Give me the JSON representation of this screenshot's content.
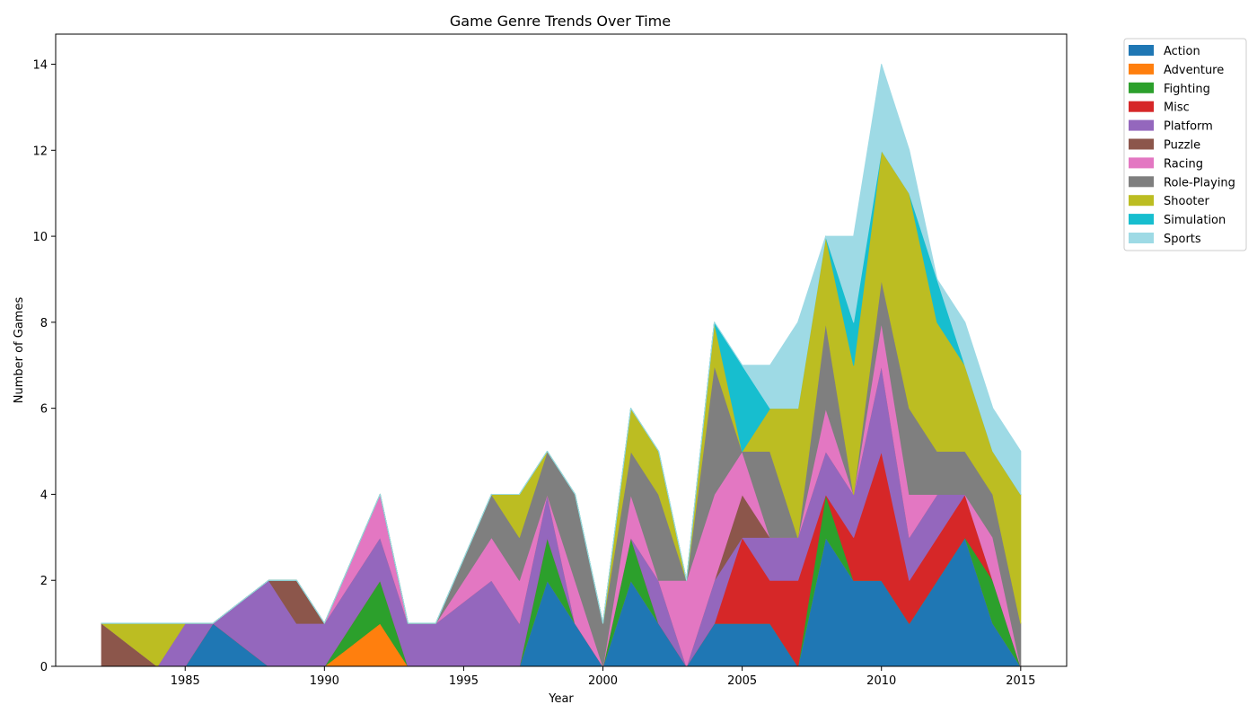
{
  "chart_data": {
    "type": "area",
    "stacked": true,
    "title": "Game Genre Trends Over Time",
    "xlabel": "Year",
    "ylabel": "Number of Games",
    "xlim": [
      1980.35,
      2016.65
    ],
    "ylim": [
      0,
      14.7
    ],
    "x_ticks": [
      1985,
      1990,
      1995,
      2000,
      2005,
      2010,
      2015
    ],
    "y_ticks": [
      0,
      2,
      4,
      6,
      8,
      10,
      12,
      14
    ],
    "grid": false,
    "legend_position": "outside-top-right",
    "x": [
      1982,
      1983,
      1984,
      1985,
      1986,
      1987,
      1988,
      1989,
      1990,
      1991,
      1992,
      1993,
      1994,
      1995,
      1996,
      1997,
      1998,
      1999,
      2000,
      2001,
      2002,
      2003,
      2004,
      2005,
      2006,
      2007,
      2008,
      2009,
      2010,
      2011,
      2012,
      2013,
      2014,
      2015
    ],
    "series": [
      {
        "name": "Action",
        "color": "#1f77b4",
        "values": [
          0,
          0,
          0,
          0,
          1,
          0.5,
          0,
          0,
          0,
          0,
          0,
          0,
          0,
          0,
          0,
          0,
          2,
          1,
          0,
          2,
          1,
          0,
          1,
          1,
          1,
          0,
          3,
          2,
          2,
          1,
          2,
          3,
          1,
          0
        ]
      },
      {
        "name": "Adventure",
        "color": "#ff7f0e",
        "values": [
          0,
          0,
          0,
          0,
          0,
          0,
          0,
          0,
          0,
          0.5,
          1,
          0,
          0,
          0,
          0,
          0,
          0,
          0,
          0,
          0,
          0,
          0,
          0,
          0,
          0,
          0,
          0,
          0,
          0,
          0,
          0,
          0,
          0,
          0
        ]
      },
      {
        "name": "Fighting",
        "color": "#2ca02c",
        "values": [
          0,
          0,
          0,
          0,
          0,
          0,
          0,
          0,
          0,
          0.5,
          1,
          0,
          0,
          0,
          0,
          0,
          1,
          0,
          0,
          1,
          0,
          0,
          0,
          0,
          0,
          0,
          1,
          0,
          0,
          0,
          0,
          0,
          1,
          0
        ]
      },
      {
        "name": "Misc",
        "color": "#d62728",
        "values": [
          0,
          0,
          0,
          0,
          0,
          0,
          0,
          0,
          0,
          0,
          0,
          0,
          0,
          0,
          0,
          0,
          0,
          0,
          0,
          0,
          0,
          0,
          0,
          2,
          1,
          2,
          0,
          1,
          3,
          1,
          1,
          1,
          0,
          0
        ]
      },
      {
        "name": "Platform",
        "color": "#9467bd",
        "values": [
          0,
          0,
          0,
          1,
          0,
          1,
          2,
          1,
          1,
          1,
          1,
          1,
          1,
          1.5,
          2,
          1,
          1,
          0,
          0,
          0,
          1,
          0,
          1,
          0,
          1,
          1,
          1,
          1,
          2,
          1,
          1,
          0,
          0,
          0
        ]
      },
      {
        "name": "Puzzle",
        "color": "#8c564b",
        "values": [
          1,
          0.5,
          0,
          0,
          0,
          0,
          0,
          1,
          0,
          0,
          0,
          0,
          0,
          0,
          0,
          0,
          0,
          0,
          0,
          0,
          0,
          0,
          0,
          1,
          0,
          0,
          0,
          0,
          0,
          0,
          0,
          0,
          0,
          0
        ]
      },
      {
        "name": "Racing",
        "color": "#e377c2",
        "values": [
          0,
          0,
          0,
          0,
          0,
          0,
          0,
          0,
          0,
          0.5,
          1,
          0,
          0,
          0.5,
          1,
          1,
          0,
          1,
          0,
          1,
          0,
          2,
          2,
          1,
          0,
          0,
          1,
          0,
          1,
          1,
          0,
          0,
          1,
          0
        ]
      },
      {
        "name": "Role-Playing",
        "color": "#7f7f7f",
        "values": [
          0,
          0,
          0,
          0,
          0,
          0,
          0,
          0,
          0,
          0,
          0,
          0,
          0,
          0.5,
          1,
          1,
          1,
          2,
          1,
          1,
          2,
          0,
          3,
          0,
          2,
          0,
          2,
          0,
          1,
          2,
          1,
          1,
          1,
          1
        ]
      },
      {
        "name": "Shooter",
        "color": "#bcbd22",
        "values": [
          0,
          0.5,
          1,
          0,
          0,
          0,
          0,
          0,
          0,
          0,
          0,
          0,
          0,
          0,
          0,
          1,
          0,
          0,
          0,
          1,
          1,
          0,
          1,
          0,
          1,
          3,
          2,
          3,
          3,
          5,
          3,
          2,
          1,
          3
        ]
      },
      {
        "name": "Simulation",
        "color": "#17becf",
        "values": [
          0,
          0,
          0,
          0,
          0,
          0,
          0,
          0,
          0,
          0,
          0,
          0,
          0,
          0,
          0,
          0,
          0,
          0,
          0,
          0,
          0,
          0,
          0,
          2,
          0,
          0,
          0,
          1,
          0,
          0,
          1,
          0,
          0,
          0
        ]
      },
      {
        "name": "Sports",
        "color": "#9edae5",
        "values": [
          0,
          0,
          0,
          0,
          0,
          0,
          0,
          0,
          0,
          0,
          0,
          0,
          0,
          0,
          0,
          0,
          0,
          0,
          0,
          0,
          0,
          0,
          0,
          0,
          1,
          2,
          0,
          2,
          2,
          1,
          0,
          1,
          1,
          1
        ]
      }
    ]
  }
}
